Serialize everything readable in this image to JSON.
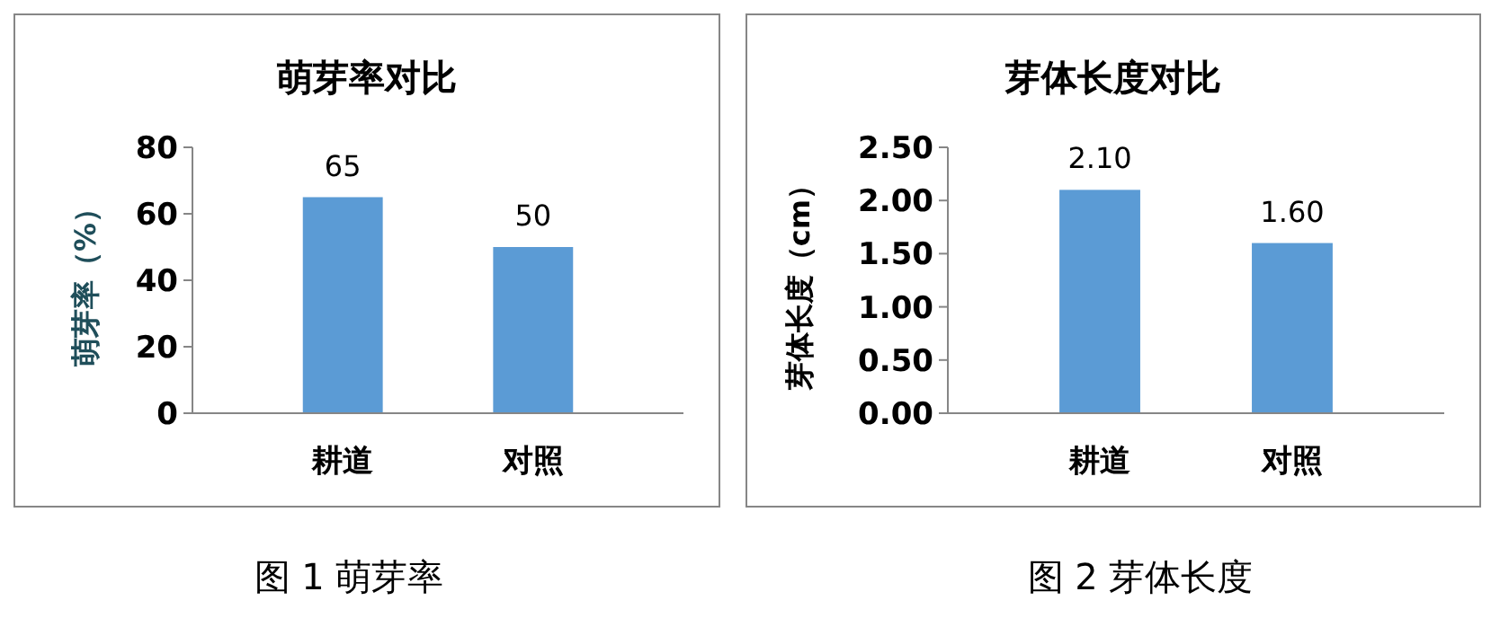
{
  "chart_data": [
    {
      "type": "bar",
      "title": "萌芽率对比",
      "ylabel": "萌芽率（%）",
      "categories": [
        "耕道",
        "对照"
      ],
      "values": [
        65,
        50
      ],
      "color": "#5b9bd5",
      "ylim": [
        0,
        80
      ],
      "yticks": [
        0,
        20,
        40,
        60,
        80
      ],
      "data_labels": true,
      "grid": false,
      "annotations": [
        "图 1  萌芽率"
      ]
    },
    {
      "type": "bar",
      "title": "芽体长度对比",
      "ylabel": "芽体长度（cm）",
      "categories": [
        "耕道",
        "对照"
      ],
      "values": [
        2.1,
        1.6
      ],
      "value_labels": [
        "2.10",
        "1.60"
      ],
      "color": "#5b9bd5",
      "ylim": [
        0,
        2.5
      ],
      "yticks": [
        {
          "value": 0,
          "label": "0.00"
        },
        {
          "value": 0.5,
          "label": "0.50"
        },
        {
          "value": 1,
          "label": "1.00"
        },
        {
          "value": 1.5,
          "label": "1.50"
        },
        {
          "value": 2,
          "label": "2.00"
        },
        {
          "value": 2.5,
          "label": "2.50"
        }
      ],
      "grid": false,
      "annotations": [
        "图 2  芽体长度"
      ]
    }
  ]
}
